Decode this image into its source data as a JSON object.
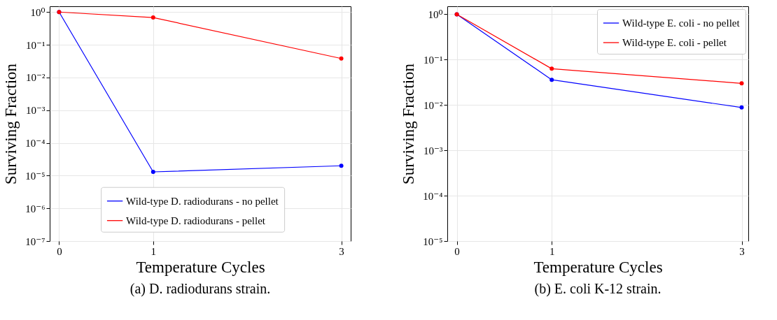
{
  "chart_data": [
    {
      "type": "line",
      "xlabel": "Temperature Cycles",
      "ylabel": "Surviving Fraction",
      "annotations": [
        "(a) D. radiodurans strain."
      ],
      "x": [
        0,
        1,
        3
      ],
      "series": [
        {
          "name": "Wild-type D. radiodurans - no pellet",
          "color": "#0000ff",
          "values": [
            1,
            1.3e-05,
            2e-05
          ]
        },
        {
          "name": "Wild-type D. radiodurans - pellet",
          "color": "#ff0000",
          "values": [
            1,
            0.68,
            0.038
          ]
        }
      ],
      "log": "y",
      "xlim": [
        -0.1,
        3.1
      ],
      "xticks": [
        0,
        1,
        3
      ],
      "ylim": [
        1e-07,
        1.5
      ],
      "yticks": [
        {
          "value": 1e-07,
          "label": "10⁻⁷"
        },
        {
          "value": 1e-06,
          "label": "10⁻⁶"
        },
        {
          "value": 1e-05,
          "label": "10⁻⁵"
        },
        {
          "value": 0.0001,
          "label": "10⁻⁴"
        },
        {
          "value": 0.001,
          "label": "10⁻³"
        },
        {
          "value": 0.01,
          "label": "10⁻²"
        },
        {
          "value": 0.1,
          "label": "10⁻¹"
        },
        {
          "value": 1,
          "label": "10⁰"
        }
      ],
      "grid": true,
      "legend": "bottom",
      "marker": "circle",
      "line_style": "solid"
    },
    {
      "type": "line",
      "xlabel": "Temperature Cycles",
      "ylabel": "Surviving Fraction",
      "annotations": [
        "(b) E. coli K-12 strain."
      ],
      "x": [
        0,
        1,
        3
      ],
      "series": [
        {
          "name": "Wild-type E. coli - no pellet",
          "color": "#0000ff",
          "values": [
            1,
            0.036,
            0.0088
          ]
        },
        {
          "name": "Wild-type E. coli - pellet",
          "color": "#ff0000",
          "values": [
            1,
            0.063,
            0.03
          ]
        }
      ],
      "log": "y",
      "xlim": [
        -0.1,
        3.07
      ],
      "xticks": [
        0,
        1,
        3
      ],
      "ylim": [
        1e-05,
        1.5
      ],
      "yticks": [
        {
          "value": 1e-05,
          "label": "10⁻⁵"
        },
        {
          "value": 0.0001,
          "label": "10⁻⁴"
        },
        {
          "value": 0.001,
          "label": "10⁻³"
        },
        {
          "value": 0.01,
          "label": "10⁻²"
        },
        {
          "value": 0.1,
          "label": "10⁻¹"
        },
        {
          "value": 1,
          "label": "10⁰"
        }
      ],
      "grid": true,
      "legend": "top right",
      "marker": "circle",
      "line_style": "solid"
    }
  ]
}
